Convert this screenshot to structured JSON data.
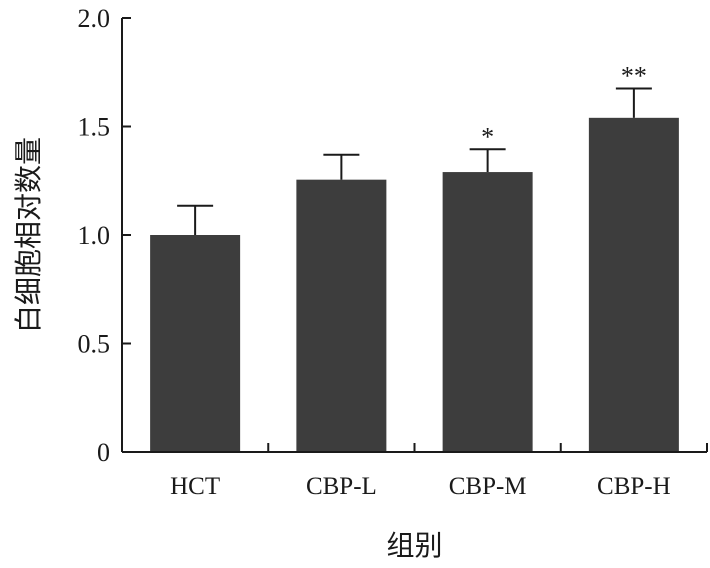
{
  "chart_data": {
    "type": "bar",
    "title": "",
    "xlabel": "组别",
    "ylabel": "白细胞相对数量",
    "categories": [
      "HCT",
      "CBP-L",
      "CBP-M",
      "CBP-H"
    ],
    "values": [
      1.0,
      1.255,
      1.29,
      1.54
    ],
    "errors": [
      0.135,
      0.115,
      0.105,
      0.135
    ],
    "significance": [
      "",
      "",
      "*",
      "**"
    ],
    "ylim": [
      0,
      2.0
    ],
    "yticks": [
      "0",
      "0.5",
      "1.0",
      "1.5",
      "2.0"
    ],
    "ytick_values": [
      0,
      0.5,
      1.0,
      1.5,
      2.0
    ],
    "grid": false,
    "bar_color": "#3d3d3d",
    "axis_color": "#1a1a1a"
  }
}
